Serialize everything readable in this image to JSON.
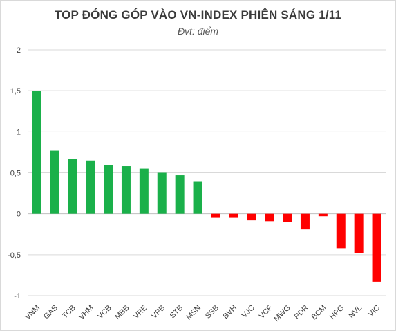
{
  "chart_data": {
    "type": "bar",
    "title": "TOP ĐÓNG GÓP VÀO VN-INDEX PHIÊN SÁNG 1/11",
    "subtitle": "Đvt: điểm",
    "categories": [
      "VNM",
      "GAS",
      "TCB",
      "VHM",
      "VCB",
      "MBB",
      "VRE",
      "VPB",
      "STB",
      "MSN",
      "SSB",
      "BVH",
      "VJC",
      "VCF",
      "MWG",
      "PDR",
      "BCM",
      "HPG",
      "NVL",
      "VIC"
    ],
    "values": [
      1.5,
      0.77,
      0.67,
      0.65,
      0.59,
      0.58,
      0.55,
      0.5,
      0.47,
      0.39,
      -0.05,
      -0.05,
      -0.08,
      -0.09,
      -0.1,
      -0.19,
      -0.03,
      -0.42,
      -0.48,
      -0.83
    ],
    "ylim": [
      -1,
      2
    ],
    "yticks": [
      -1,
      -0.5,
      0,
      0.5,
      1,
      1.5,
      2
    ],
    "ytick_labels": [
      "-1",
      "-0,5",
      "0",
      "0,5",
      "1",
      "1,5",
      "2"
    ],
    "grid": true,
    "positive_color": "#1ab04a",
    "negative_color": "#ff0000",
    "grid_color": "#d9d9d9"
  }
}
